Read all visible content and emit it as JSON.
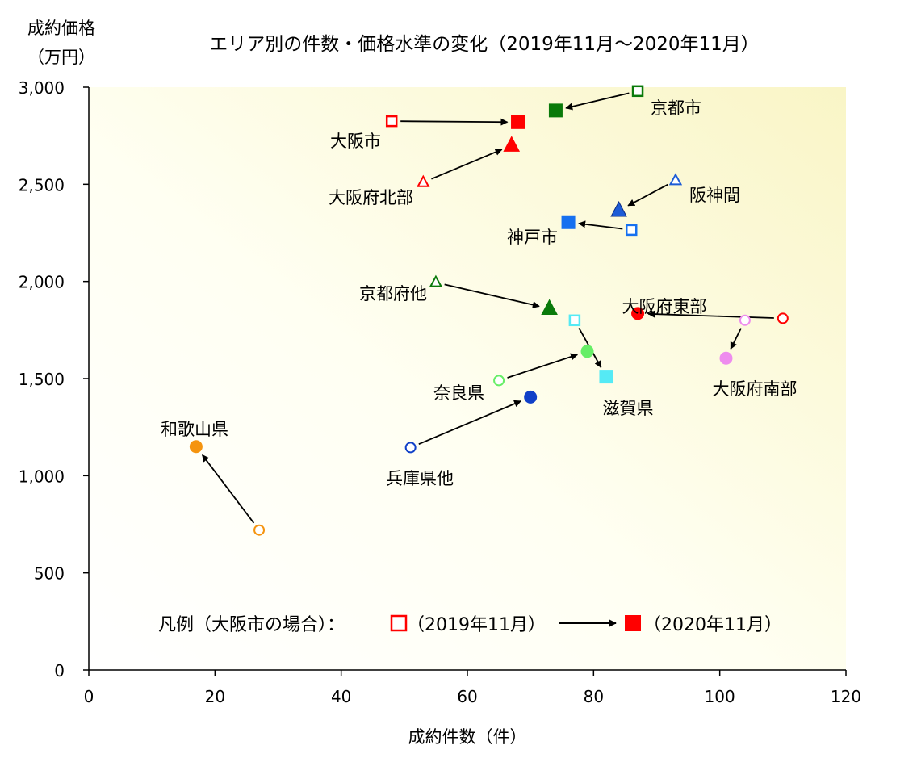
{
  "chart_data": {
    "type": "scatter",
    "title": "エリア別の件数・価格水準の変化（2019年11月～2020年11月）",
    "ylabel_line1": "成約価格",
    "ylabel_line2": "（万円）",
    "xlabel": "成約件数（件）",
    "xlim": [
      0,
      120
    ],
    "ylim": [
      0,
      3000
    ],
    "xticks": [
      0,
      20,
      40,
      60,
      80,
      100,
      120
    ],
    "xtick_labels": [
      "0",
      "20",
      "40",
      "60",
      "80",
      "100",
      "120"
    ],
    "yticks": [
      0,
      500,
      1000,
      1500,
      2000,
      2500,
      3000
    ],
    "ytick_labels": [
      "0",
      "500",
      "1,000",
      "1,500",
      "2,000",
      "2,500",
      "3,000"
    ],
    "grid": false,
    "legend": {
      "prefix": "凡例（大阪市の場合）：",
      "before_label": "（2019年11月）",
      "after_label": "（2020年11月）",
      "placement": "bottom"
    },
    "series": [
      {
        "name": "京都市",
        "marker": "square",
        "color": "#0a7a0a",
        "from": [
          87,
          2980
        ],
        "to": [
          74,
          2880
        ]
      },
      {
        "name": "大阪市",
        "marker": "square",
        "color": "#ff0000",
        "from": [
          48,
          2825
        ],
        "to": [
          68,
          2820
        ]
      },
      {
        "name": "大阪府北部",
        "marker": "triangle",
        "color": "#ff0000",
        "from": [
          53,
          2510
        ],
        "to": [
          67,
          2700
        ]
      },
      {
        "name": "阪神間",
        "marker": "triangle",
        "color": "#1c5bd6",
        "from": [
          93,
          2520
        ],
        "to": [
          84,
          2365
        ]
      },
      {
        "name": "神戸市",
        "marker": "square",
        "color": "#1670f0",
        "from": [
          86,
          2265
        ],
        "to": [
          76,
          2305
        ]
      },
      {
        "name": "京都府他",
        "marker": "triangle",
        "color": "#0a7a0a",
        "from": [
          55,
          1995
        ],
        "to": [
          73,
          1860
        ]
      },
      {
        "name": "大阪府東部",
        "marker": "circle",
        "color": "#ff0000",
        "from": [
          110,
          1810
        ],
        "to": [
          87,
          1835
        ]
      },
      {
        "name": "大阪府南部",
        "marker": "circle",
        "color": "#ee8cee",
        "from": [
          104,
          1800
        ],
        "to": [
          101,
          1605
        ]
      },
      {
        "name": "滋賀県",
        "marker": "square",
        "color": "#55eaf5",
        "from": [
          77,
          1800
        ],
        "to": [
          82,
          1510
        ]
      },
      {
        "name": "奈良県",
        "marker": "circle",
        "color": "#66ee66",
        "from": [
          65,
          1490
        ],
        "to": [
          79,
          1640
        ]
      },
      {
        "name": "兵庫県他",
        "marker": "circle",
        "color": "#1040c8",
        "from": [
          51,
          1145
        ],
        "to": [
          70,
          1405
        ]
      },
      {
        "name": "和歌山県",
        "marker": "circle",
        "color": "#f5940f",
        "from": [
          27,
          720
        ],
        "to": [
          17,
          1150
        ]
      }
    ]
  }
}
